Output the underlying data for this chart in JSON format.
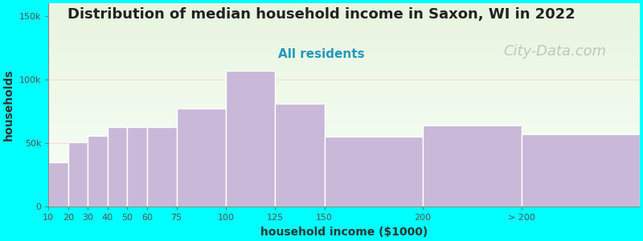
{
  "title": "Distribution of median household income in Saxon, WI in 2022",
  "subtitle": "All residents",
  "xlabel": "household income ($1000)",
  "ylabel": "households",
  "background_color": "#00FFFF",
  "plot_bg_top": "#e8f5e0",
  "plot_bg_bottom": "#f8fff8",
  "bar_color": "#c9b8d8",
  "bar_edge_color": "#ffffff",
  "watermark": "City-Data.com",
  "categories": [
    "10",
    "20",
    "30",
    "40",
    "50",
    "60",
    "75",
    "100",
    "125",
    "150",
    "200",
    "> 200"
  ],
  "values": [
    35000,
    51000,
    56000,
    63000,
    63000,
    63000,
    77000,
    107000,
    81000,
    55000,
    64000,
    57000
  ],
  "ylim": [
    0,
    160000
  ],
  "yticks": [
    0,
    50000,
    100000,
    150000
  ],
  "ytick_labels": [
    "0",
    "50k",
    "100k",
    "150k"
  ],
  "title_fontsize": 13,
  "subtitle_fontsize": 11,
  "subtitle_color": "#2299bb",
  "axis_label_fontsize": 10,
  "tick_fontsize": 8,
  "watermark_color": "#aaaaaa",
  "watermark_fontsize": 13,
  "bar_lefts": [
    10,
    20,
    30,
    40,
    50,
    60,
    75,
    100,
    125,
    150,
    200,
    250
  ],
  "bar_widths": [
    10,
    10,
    10,
    10,
    10,
    15,
    25,
    25,
    25,
    50,
    50,
    60
  ],
  "xlim": [
    10,
    310
  ],
  "xtick_positions": [
    10,
    20,
    30,
    40,
    50,
    60,
    75,
    100,
    125,
    150,
    200,
    250
  ],
  "grid_color": "#ffcccc",
  "grid_alpha": 0.7
}
